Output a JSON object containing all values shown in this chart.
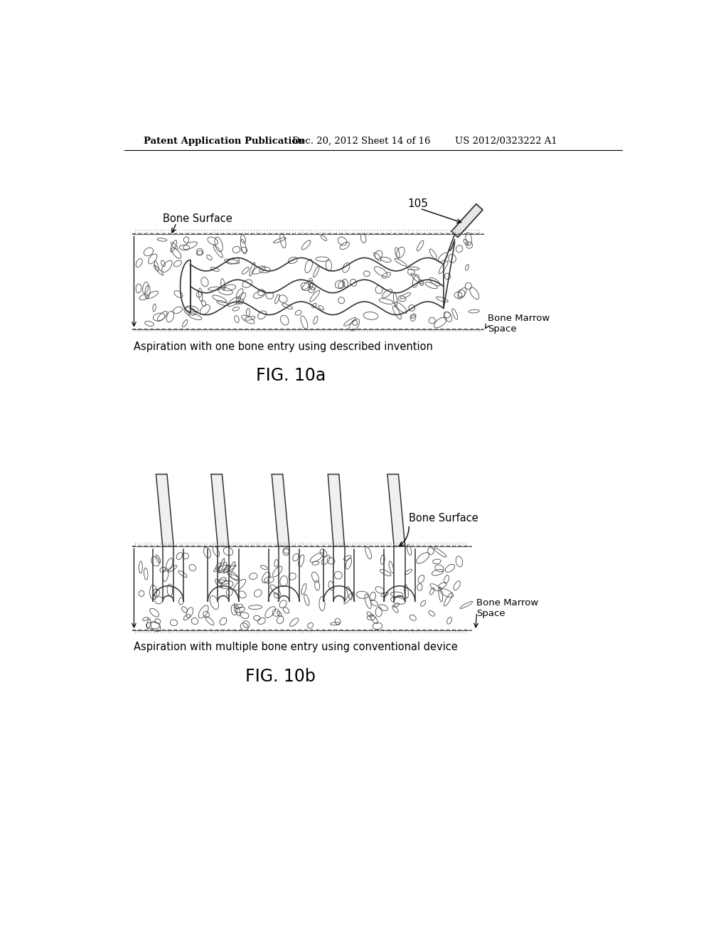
{
  "bg_color": "#ffffff",
  "line_color": "#000000",
  "header_text": "Patent Application Publication",
  "header_date": "Dec. 20, 2012",
  "header_sheet": "Sheet 14 of 16",
  "header_patent": "US 2012/0323222 A1",
  "fig10a_label": "FIG. 10a",
  "fig10b_label": "FIG. 10b",
  "fig10a_caption": "Aspiration with one bone entry using described invention",
  "fig10b_caption": "Aspiration with multiple bone entry using conventional device",
  "label_105": "105",
  "label_bone_surface_a": "Bone Surface",
  "label_bone_marrow_a": "Bone Marrow\nSpace",
  "label_bone_surface_b": "Bone Surface",
  "label_bone_marrow_b": "Bone Marrow\nSpace"
}
